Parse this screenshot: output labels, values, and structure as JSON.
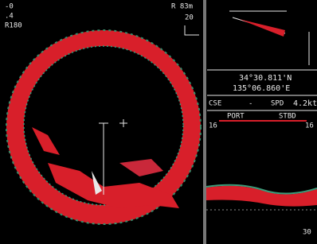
{
  "sonar": {
    "top_left": [
      "-0",
      ".4",
      "R180"
    ],
    "top_right": [
      "R 83m",
      "20"
    ]
  },
  "position": {
    "lat": "34°30.811'N",
    "lon": "135°06.860'E"
  },
  "course": {
    "cse_label": "CSE",
    "cse_value": "-",
    "spd_label": "SPD",
    "spd_value": "4.2kt"
  },
  "echogram": {
    "port": "PORT",
    "stbd": "STBD",
    "left_scale": "16",
    "right_scale": "16",
    "depth": "30"
  }
}
